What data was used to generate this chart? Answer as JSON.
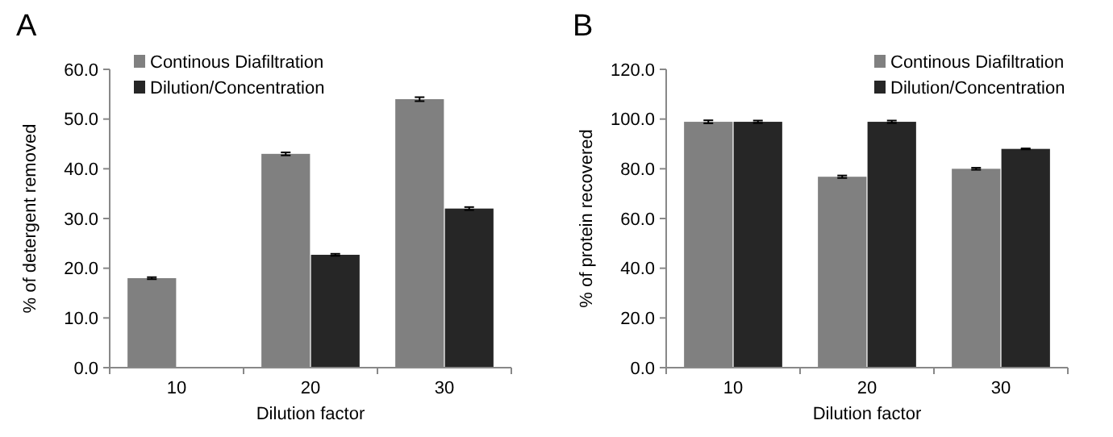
{
  "chart_data": [
    {
      "type": "bar",
      "title": "A",
      "xlabel": "Dilution factor",
      "ylabel": "% of detergent removed",
      "categories": [
        "10",
        "20",
        "30"
      ],
      "series": [
        {
          "name": "Continous Diafiltration",
          "color": "#808080",
          "values": [
            18.0,
            43.0,
            54.0
          ],
          "errors": [
            0.2,
            0.3,
            0.4
          ]
        },
        {
          "name": "Dilution/Concentration",
          "color": "#262626",
          "values": [
            null,
            22.7,
            32.0
          ],
          "errors": [
            null,
            0.2,
            0.3
          ]
        }
      ],
      "ylim": [
        0,
        60
      ],
      "yticks": [
        {
          "value": 0,
          "label": "0.0"
        },
        {
          "value": 10,
          "label": "10.0"
        },
        {
          "value": 20,
          "label": "20.0"
        },
        {
          "value": 30,
          "label": "30.0"
        },
        {
          "value": 40,
          "label": "40.0"
        },
        {
          "value": 50,
          "label": "50.0"
        },
        {
          "value": 60,
          "label": "60.0"
        }
      ],
      "legend": "top left",
      "grid": false
    },
    {
      "type": "bar",
      "title": "B",
      "xlabel": "Dilution factor",
      "ylabel": "% of protein recovered",
      "categories": [
        "10",
        "20",
        "30"
      ],
      "series": [
        {
          "name": "Continous Diafiltration",
          "color": "#808080",
          "values": [
            98.9,
            76.8,
            80.0
          ],
          "errors": [
            0.6,
            0.5,
            0.4
          ]
        },
        {
          "name": "Dilution/Concentration",
          "color": "#262626",
          "values": [
            98.9,
            98.9,
            88.0
          ],
          "errors": [
            0.5,
            0.5,
            0.2
          ]
        }
      ],
      "ylim": [
        0,
        120
      ],
      "yticks": [
        {
          "value": 0,
          "label": "0.0"
        },
        {
          "value": 20,
          "label": "20.0"
        },
        {
          "value": 40,
          "label": "40.0"
        },
        {
          "value": 60,
          "label": "60.0"
        },
        {
          "value": 80,
          "label": "80.0"
        },
        {
          "value": 100,
          "label": "100.0"
        },
        {
          "value": 120,
          "label": "120.0"
        }
      ],
      "legend": "top right",
      "grid": false
    }
  ]
}
